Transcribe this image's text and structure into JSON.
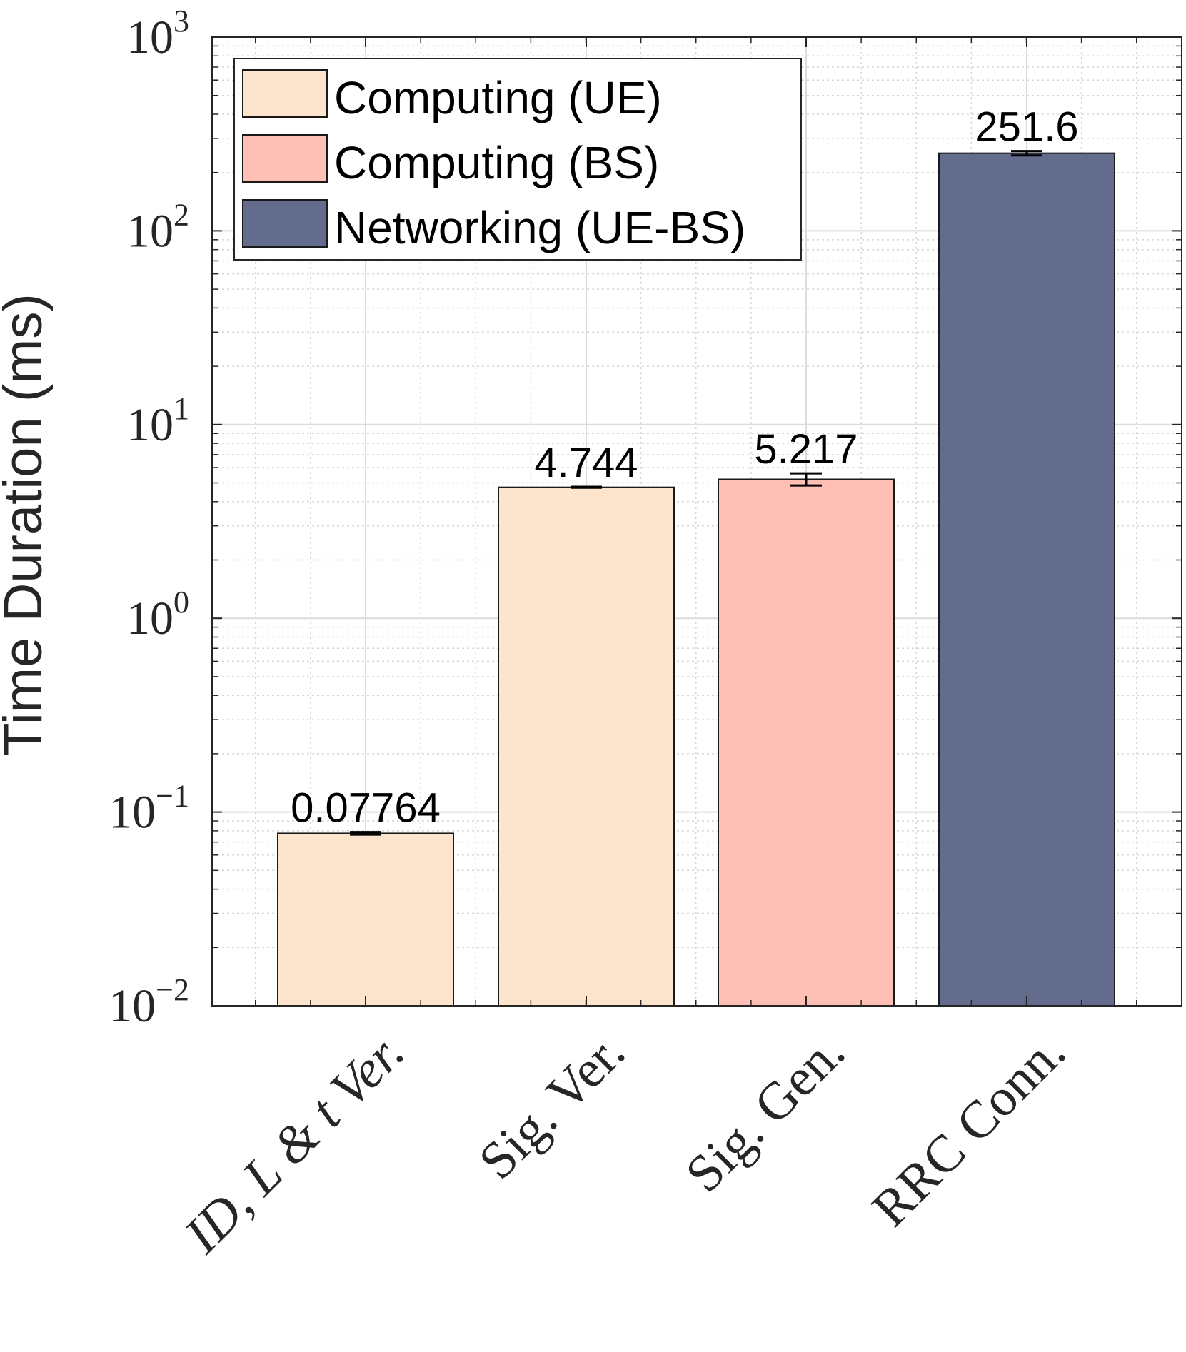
{
  "chart_data": {
    "type": "bar",
    "y_scale": "log",
    "title": "",
    "xlabel": "",
    "ylabel": "Time Duration (ms)",
    "ylim": [
      0.01,
      1000
    ],
    "y_ticks": [
      {
        "value": 0.01,
        "base": "10",
        "exp": "−2"
      },
      {
        "value": 0.1,
        "base": "10",
        "exp": "−1"
      },
      {
        "value": 1,
        "base": "10",
        "exp": "0"
      },
      {
        "value": 10,
        "base": "10",
        "exp": "1"
      },
      {
        "value": 100,
        "base": "10",
        "exp": "2"
      },
      {
        "value": 1000,
        "base": "10",
        "exp": "3"
      }
    ],
    "grid": true,
    "legend_position": "top-left",
    "categories": [
      "ID, L & t Ver.",
      "Sig. Ver.",
      "Sig. Gen.",
      "RRC Conn."
    ],
    "bars": [
      {
        "category": "ID, L & t Ver.",
        "value": 0.07764,
        "label": "0.07764",
        "series": "Computing (UE)",
        "err_low": 0.0765,
        "err_high": 0.0788
      },
      {
        "category": "Sig. Ver.",
        "value": 4.744,
        "label": "4.744",
        "series": "Computing (UE)",
        "err_low": 4.72,
        "err_high": 4.77
      },
      {
        "category": "Sig. Gen.",
        "value": 5.217,
        "label": "5.217",
        "series": "Computing (BS)",
        "err_low": 4.85,
        "err_high": 5.6
      },
      {
        "category": "RRC Conn.",
        "value": 251.6,
        "label": "251.6",
        "series": "Networking (UE-BS)",
        "err_low": 245,
        "err_high": 258
      }
    ],
    "legend": [
      {
        "name": "Computing (UE)",
        "color": "#fde4cd"
      },
      {
        "name": "Computing (BS)",
        "color": "#fec0b4"
      },
      {
        "name": "Networking (UE-BS)",
        "color": "#636c8d"
      }
    ]
  }
}
